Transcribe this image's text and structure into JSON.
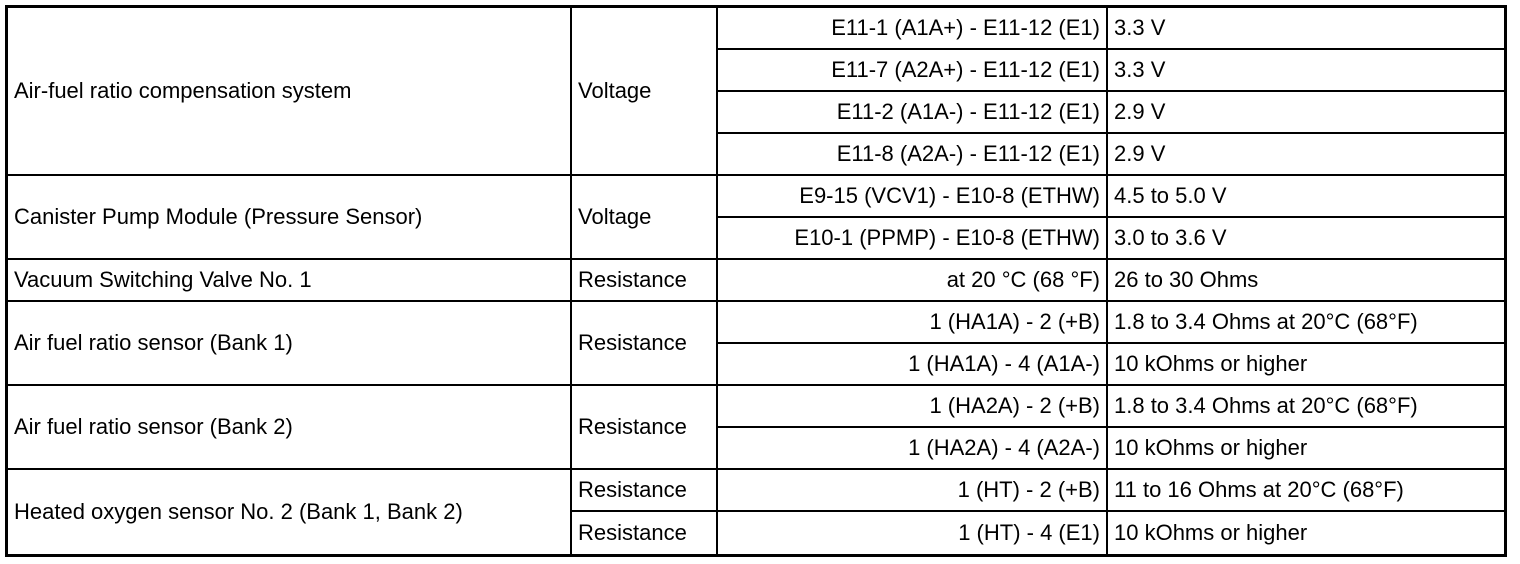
{
  "groups": [
    {
      "name": "Air-fuel ratio compensation system",
      "measurements": [
        {
          "label": "Voltage",
          "rows": [
            {
              "terminals": "E11-1 (A1A+) - E11-12 (E1)",
              "value": "3.3 V"
            },
            {
              "terminals": "E11-7 (A2A+) - E11-12 (E1)",
              "value": "3.3 V"
            },
            {
              "terminals": "E11-2 (A1A-) - E11-12 (E1)",
              "value": "2.9 V"
            },
            {
              "terminals": "E11-8 (A2A-) - E11-12 (E1)",
              "value": "2.9 V"
            }
          ]
        }
      ]
    },
    {
      "name": "Canister Pump Module (Pressure Sensor)",
      "measurements": [
        {
          "label": "Voltage",
          "rows": [
            {
              "terminals": "E9-15 (VCV1) - E10-8 (ETHW)",
              "value": "4.5 to 5.0 V"
            },
            {
              "terminals": "E10-1 (PPMP) - E10-8 (ETHW)",
              "value": "3.0 to 3.6 V"
            }
          ]
        }
      ]
    },
    {
      "name": "Vacuum Switching Valve No. 1",
      "measurements": [
        {
          "label": "Resistance",
          "rows": [
            {
              "terminals": "at 20 °C (68 °F)",
              "value": "26 to 30 Ohms"
            }
          ]
        }
      ]
    },
    {
      "name": "Air fuel ratio sensor (Bank 1)",
      "measurements": [
        {
          "label": "Resistance",
          "rows": [
            {
              "terminals": "1 (HA1A) - 2 (+B)",
              "value": "1.8 to 3.4 Ohms at 20°C (68°F)"
            },
            {
              "terminals": "1 (HA1A) - 4 (A1A-)",
              "value": "10 kOhms or higher"
            }
          ]
        }
      ]
    },
    {
      "name": "Air fuel ratio sensor (Bank 2)",
      "measurements": [
        {
          "label": "Resistance",
          "rows": [
            {
              "terminals": "1 (HA2A) - 2 (+B)",
              "value": "1.8 to 3.4 Ohms at 20°C (68°F)"
            },
            {
              "terminals": "1 (HA2A) - 4 (A2A-)",
              "value": "10 kOhms or higher"
            }
          ]
        }
      ]
    },
    {
      "name": "Heated oxygen sensor No. 2 (Bank 1, Bank 2)",
      "measurements": [
        {
          "label": "Resistance",
          "rows": [
            {
              "terminals": "1 (HT) - 2 (+B)",
              "value": "11 to 16 Ohms at 20°C (68°F)"
            }
          ]
        },
        {
          "label": "Resistance",
          "rows": [
            {
              "terminals": "1 (HT) - 4 (E1)",
              "value": "10 kOhms or higher"
            }
          ]
        }
      ]
    }
  ]
}
